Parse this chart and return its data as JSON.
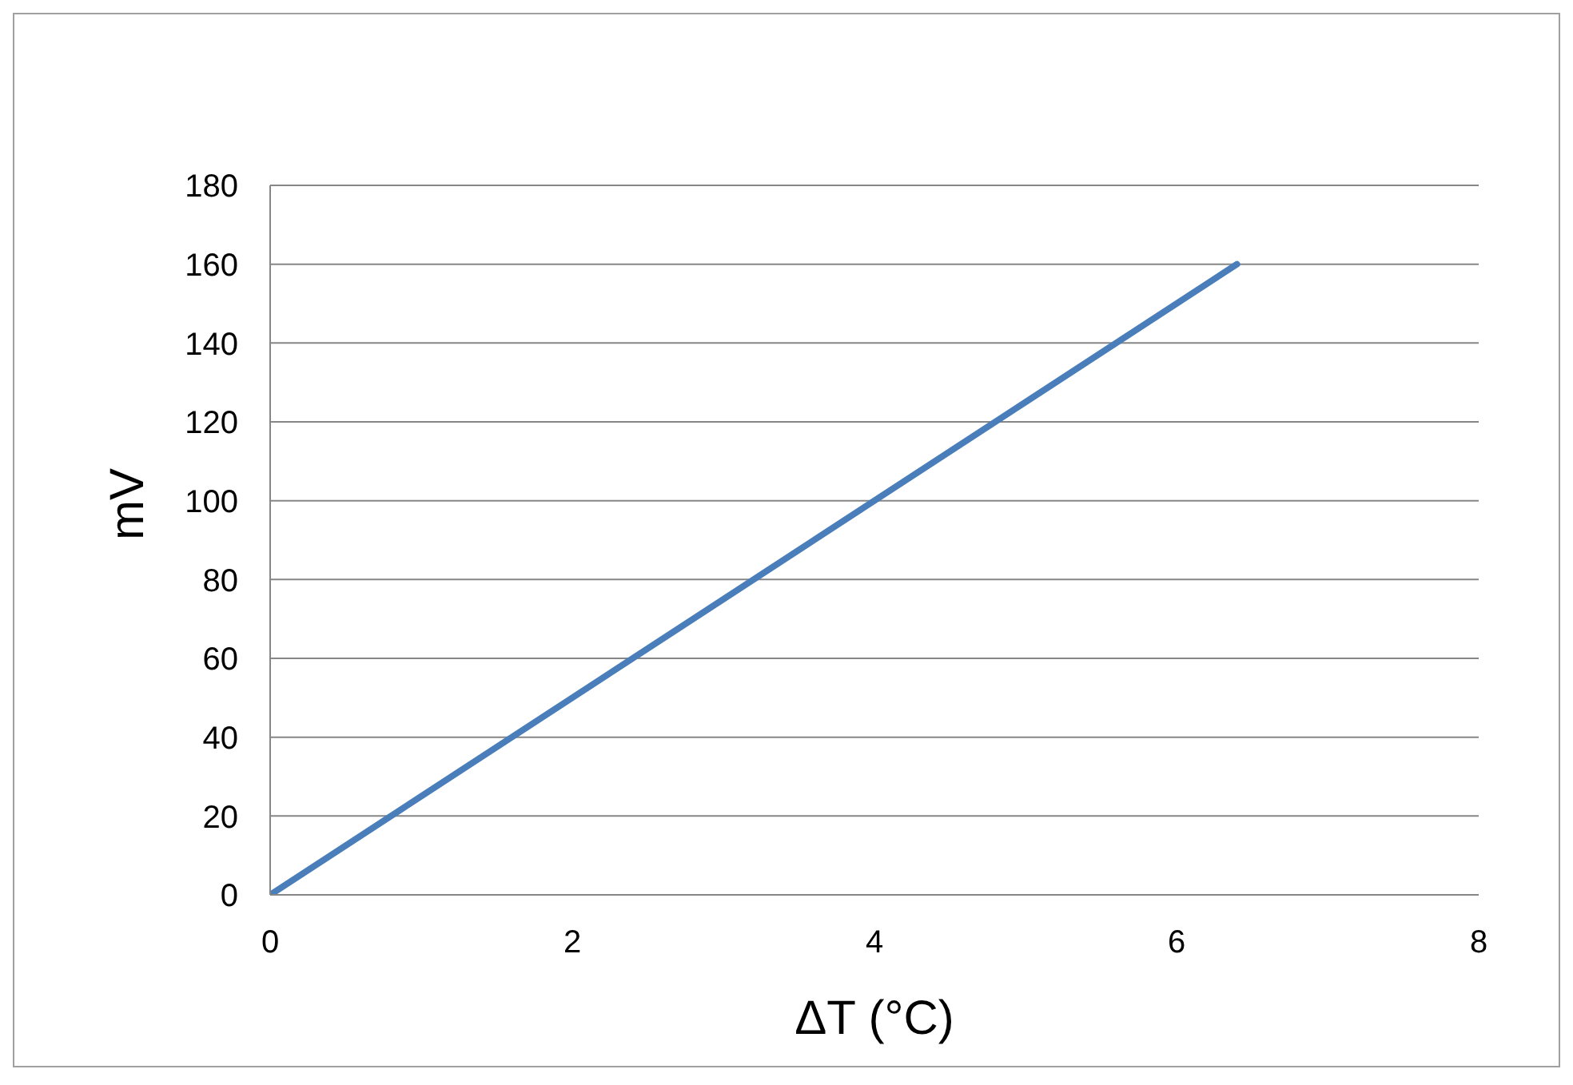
{
  "chart_data": {
    "type": "line",
    "xlabel": "ΔT (°C)",
    "ylabel": "mV",
    "x": [
      0,
      6.4
    ],
    "series": [
      {
        "color": "#4a7ebb",
        "values": [
          0,
          160
        ]
      }
    ],
    "xlim": [
      0,
      8
    ],
    "xticks": [
      0,
      2,
      4,
      6,
      8
    ],
    "ylim": [
      0,
      180
    ],
    "yticks": [
      0,
      20,
      40,
      60,
      80,
      100,
      120,
      140,
      160,
      180
    ],
    "grid": "y",
    "legend": false,
    "marker": "none",
    "line_style": "solid"
  }
}
